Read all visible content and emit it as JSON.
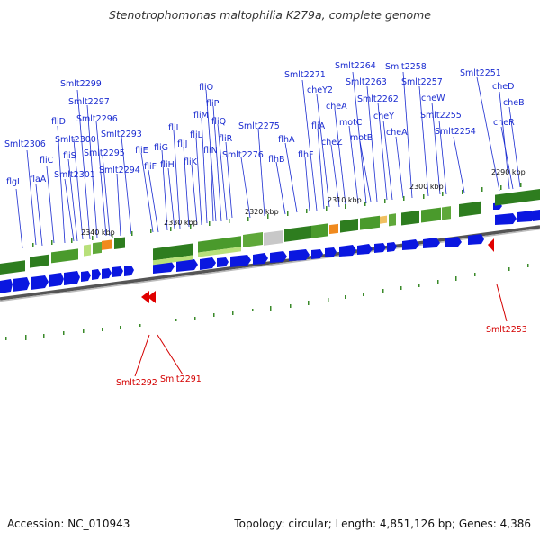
{
  "title": "Stenotrophomonas maltophilia K279a, complete genome",
  "footer": {
    "accession": "Accession: NC_010943",
    "summary": "Topology: circular; Length: 4,851,126 bp; Genes: 4,386"
  },
  "colors": {
    "gene_label": "#1a2bd0",
    "pseudo_label": "#d40000",
    "cds_arrow": "#0a17e0",
    "backbone": "#777777",
    "cog_dark": "#2e7d1f",
    "cog_mid": "#5fa83a",
    "cog_light": "#b8e07a",
    "cog_orange": "#f08a1e",
    "gc_tick": "#3a8a2a"
  },
  "kbp_marks": [
    "2290 kbp",
    "2300 kbp",
    "2310 kbp",
    "2320 kbp",
    "2330 kbp",
    "2340 kbp"
  ],
  "gene_labels": [
    "flgL",
    "flaA",
    "Smlt2306",
    "fliC",
    "fliD",
    "Smlt2301",
    "fliS",
    "Smlt2300",
    "Smlt2299",
    "Smlt2297",
    "Smlt2296",
    "Smlt2295",
    "Smlt2294",
    "Smlt2293",
    "fliE",
    "fliF",
    "fliG",
    "fliH",
    "fliI",
    "fliJ",
    "fliK",
    "fliL",
    "fliM",
    "fliN",
    "fliO",
    "fliP",
    "fliQ",
    "fliR",
    "Smlt2276",
    "Smlt2275",
    "flhB",
    "flhA",
    "flhF",
    "Smlt2271",
    "fliA",
    "cheY2",
    "cheZ",
    "cheA",
    "motC",
    "Smlt2264",
    "Smlt2263",
    "motB",
    "Smlt2262",
    "cheY",
    "Smlt2258",
    "cheA",
    "Smlt2257",
    "cheW",
    "Smlt2255",
    "Smlt2254",
    "Smlt2251",
    "cheD",
    "cheB",
    "cheR"
  ],
  "pseudo_labels": [
    "Smlt2292",
    "Smlt2291",
    "Smlt2253"
  ]
}
